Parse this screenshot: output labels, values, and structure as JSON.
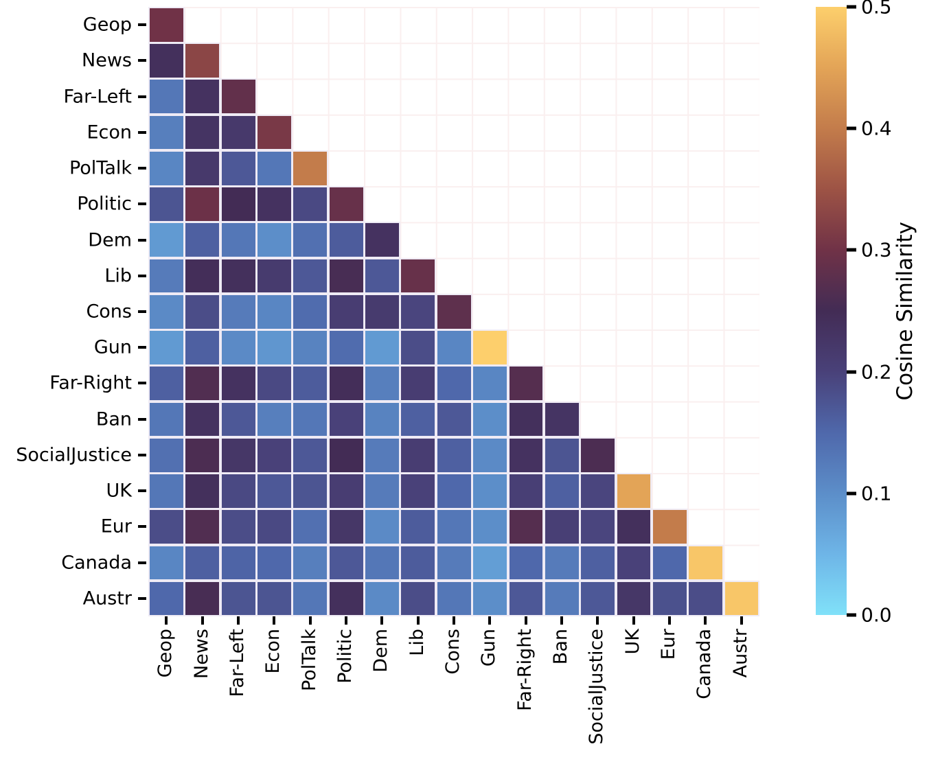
{
  "chart_data": {
    "type": "heatmap",
    "title": "",
    "xlabel": "",
    "ylabel": "",
    "triangle": "lower",
    "categories": [
      "Geop",
      "News",
      "Far-Left",
      "Econ",
      "PolTalk",
      "Politic",
      "Dem",
      "Lib",
      "Cons",
      "Gun",
      "Far-Right",
      "Ban",
      "SocialJustice",
      "UK",
      "Eur",
      "Canada",
      "Austr"
    ],
    "matrix": [
      [
        0.3
      ],
      [
        0.24,
        0.33
      ],
      [
        0.13,
        0.235,
        0.285
      ],
      [
        0.12,
        0.23,
        0.22,
        0.31
      ],
      [
        0.11,
        0.22,
        0.17,
        0.13,
        0.4
      ],
      [
        0.175,
        0.295,
        0.25,
        0.235,
        0.19,
        0.29
      ],
      [
        0.085,
        0.16,
        0.13,
        0.1,
        0.14,
        0.165,
        0.235
      ],
      [
        0.125,
        0.245,
        0.24,
        0.215,
        0.17,
        0.255,
        0.17,
        0.29
      ],
      [
        0.105,
        0.185,
        0.125,
        0.11,
        0.145,
        0.21,
        0.215,
        0.195,
        0.28
      ],
      [
        0.085,
        0.16,
        0.105,
        0.09,
        0.115,
        0.145,
        0.085,
        0.185,
        0.11,
        0.5
      ],
      [
        0.16,
        0.265,
        0.235,
        0.19,
        0.165,
        0.245,
        0.12,
        0.21,
        0.15,
        0.11,
        0.27
      ],
      [
        0.13,
        0.235,
        0.17,
        0.12,
        0.13,
        0.2,
        0.115,
        0.16,
        0.17,
        0.1,
        0.24,
        0.23
      ],
      [
        0.14,
        0.26,
        0.225,
        0.2,
        0.17,
        0.25,
        0.125,
        0.21,
        0.16,
        0.105,
        0.235,
        0.175,
        0.26
      ],
      [
        0.13,
        0.24,
        0.19,
        0.17,
        0.175,
        0.21,
        0.125,
        0.2,
        0.15,
        0.1,
        0.205,
        0.16,
        0.195,
        0.45
      ],
      [
        0.185,
        0.265,
        0.185,
        0.19,
        0.14,
        0.225,
        0.105,
        0.165,
        0.13,
        0.1,
        0.27,
        0.205,
        0.195,
        0.24,
        0.4
      ],
      [
        0.11,
        0.16,
        0.155,
        0.15,
        0.12,
        0.17,
        0.13,
        0.165,
        0.125,
        0.08,
        0.15,
        0.125,
        0.16,
        0.2,
        0.15,
        0.49
      ],
      [
        0.15,
        0.255,
        0.175,
        0.175,
        0.13,
        0.24,
        0.105,
        0.185,
        0.13,
        0.1,
        0.17,
        0.125,
        0.17,
        0.225,
        0.18,
        0.185,
        0.49
      ]
    ],
    "colorbar": {
      "label": "Cosine Similarity",
      "min": 0.0,
      "max": 0.5,
      "ticks": [
        {
          "value": 0.5,
          "label": "0.5"
        },
        {
          "value": 0.4,
          "label": "0.4"
        },
        {
          "value": 0.3,
          "label": "0.3"
        },
        {
          "value": 0.2,
          "label": "0.2"
        },
        {
          "value": 0.1,
          "label": "0.1"
        },
        {
          "value": 0.0,
          "label": "0.0"
        }
      ]
    },
    "colormap_stops": [
      {
        "value": 0.0,
        "color": "#80E1F9"
      },
      {
        "value": 0.05,
        "color": "#6EB5E7"
      },
      {
        "value": 0.1,
        "color": "#5C8EC9"
      },
      {
        "value": 0.15,
        "color": "#4F68AB"
      },
      {
        "value": 0.2,
        "color": "#494179"
      },
      {
        "value": 0.25,
        "color": "#432C55"
      },
      {
        "value": 0.3,
        "color": "#703247"
      },
      {
        "value": 0.35,
        "color": "#9D5345"
      },
      {
        "value": 0.4,
        "color": "#C37C4B"
      },
      {
        "value": 0.45,
        "color": "#E3A457"
      },
      {
        "value": 0.5,
        "color": "#FDCF6C"
      }
    ],
    "colors": {
      "background": "#ffffff",
      "grid_line": "#FAEFEF",
      "cell_border": "#EFEBF5",
      "tick": "#000000",
      "label_text": "#000000"
    },
    "layout_hints": {
      "grid": true,
      "legend_position": "right-colorbar"
    }
  }
}
